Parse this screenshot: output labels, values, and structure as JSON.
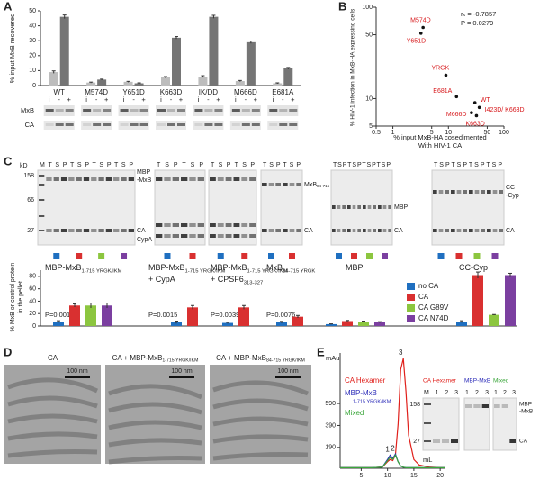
{
  "panel_labels": [
    "A",
    "B",
    "C",
    "D",
    "E"
  ],
  "chart_data": [
    {
      "type": "bar",
      "ylabel": "% input MxB recovered",
      "categories": [
        "WT",
        "M574D",
        "Y651D",
        "K663D",
        "IK/DD",
        "M666D",
        "E681A"
      ],
      "series": [
        {
          "color": "#bdbdbd",
          "values": [
            9,
            2,
            2.5,
            5.5,
            6,
            3,
            1.5
          ],
          "errors": [
            0.8,
            0.3,
            0.3,
            0.5,
            0.6,
            0.4,
            0.3
          ]
        },
        {
          "color": "#757575",
          "values": [
            46,
            4,
            1.5,
            32,
            46,
            29,
            11.5
          ],
          "errors": [
            1.2,
            0.3,
            0.3,
            0.8,
            1.0,
            0.8,
            0.6
          ]
        }
      ],
      "ylim": [
        0,
        50
      ],
      "yticks": [
        0,
        10,
        20,
        30,
        40,
        50
      ]
    },
    {
      "type": "scatter",
      "xlabel": [
        "% input MxB-HA cosedimented",
        "With HIV-1 CA"
      ],
      "ylabel": "% HIV-1 infection in MxB-HA expressing cells",
      "log_x": true,
      "log_y": true,
      "x": [
        3.5,
        3.2,
        9,
        14,
        30,
        36,
        26,
        32
      ],
      "y": [
        60,
        52,
        18,
        10.5,
        9,
        8,
        7,
        6.5
      ],
      "labels": [
        "M574D",
        "Y651D",
        "YRGK",
        "E681A",
        "WT",
        "I423D/ K663D",
        "M666D",
        "K663D"
      ],
      "label_color": "#d7191c",
      "marker_color": "#111111",
      "xlim": [
        0.5,
        100
      ],
      "xticks": [
        0.5,
        1,
        5,
        10,
        50,
        100
      ],
      "ylim": [
        5,
        100
      ],
      "yticks": [
        5,
        10,
        50,
        100
      ],
      "stats": [
        "rₛ = -0.7857",
        "P = 0.0279"
      ]
    },
    {
      "type": "bar",
      "ylabel": [
        "% MxB or control protein",
        "in the pellet"
      ],
      "categories": [
        {
          "lines": [
            {
              "text": "MBP-MxB",
              "sub": "1-715 YRGK/IKM"
            }
          ]
        },
        {
          "lines": [
            {
              "text": "MBP-MxB",
              "sub": "1-715 YRGK/IKM"
            },
            {
              "text": "+ CypA"
            }
          ]
        },
        {
          "lines": [
            {
              "text": "MBP-MxB",
              "sub": "1-715 YRGK/IKM"
            },
            {
              "text": "+ CPSF6",
              "sub": "313-327"
            }
          ]
        },
        {
          "lines": [
            {
              "text": "MxB",
              "sub": "84-715 YRGK"
            }
          ]
        },
        {
          "lines": [
            {
              "text": "MBP"
            }
          ]
        },
        {
          "lines": [
            {
              "text": "CC-Cyp"
            }
          ]
        }
      ],
      "series": [
        {
          "name": "no CA",
          "color": "#1f6fc0",
          "values": [
            7,
            6,
            5,
            6,
            3,
            7
          ],
          "errors": [
            1.5,
            2,
            1,
            1.5,
            0.5,
            1.5
          ]
        },
        {
          "name": "CA",
          "color": "#d93030",
          "values": [
            33,
            30,
            30,
            15,
            8,
            82
          ],
          "errors": [
            2.5,
            3,
            3,
            2,
            1,
            5
          ]
        },
        {
          "name": "CA G89V",
          "color": "#8cc63f",
          "values": [
            33,
            null,
            null,
            null,
            7,
            18
          ],
          "errors": [
            4,
            null,
            null,
            null,
            1,
            0.5
          ]
        },
        {
          "name": "CA N74D",
          "color": "#7b3fa0",
          "values": [
            33,
            null,
            null,
            null,
            6,
            82
          ],
          "errors": [
            4,
            null,
            null,
            null,
            1,
            3
          ]
        }
      ],
      "annotations": [
        "P=0.0015",
        "P=0.0015",
        "P=0.0039",
        "P=0.0076",
        null,
        null
      ],
      "ylim": [
        0,
        90
      ],
      "yticks": [
        0,
        20,
        40,
        60,
        80
      ]
    },
    {
      "type": "line",
      "ylabel": "mAu",
      "xlabel": "mL",
      "x": [
        1,
        3,
        5,
        7,
        9,
        10,
        10.5,
        11,
        11.5,
        12,
        12.5,
        13,
        13.5,
        14,
        15,
        16,
        18,
        20,
        21
      ],
      "series": [
        {
          "name": "CA Hexamer",
          "color": "#e0201b",
          "values": [
            5,
            5,
            5,
            5,
            10,
            60,
            80,
            70,
            120,
            400,
            900,
            1000,
            700,
            300,
            80,
            30,
            10,
            5,
            5
          ]
        },
        {
          "name": "MBP-MxB",
          "name_sub": "1-715 YRGK/IKM",
          "color": "#2b2bb8",
          "values": [
            5,
            5,
            5,
            5,
            10,
            80,
            120,
            90,
            130,
            60,
            20,
            10,
            5,
            5,
            5,
            5,
            5,
            5,
            5
          ]
        },
        {
          "name": "Mixed",
          "color": "#3aa63a",
          "values": [
            5,
            5,
            5,
            5,
            10,
            70,
            100,
            80,
            120,
            60,
            20,
            10,
            5,
            5,
            5,
            5,
            5,
            5,
            5
          ]
        }
      ],
      "peaks": [
        {
          "text": "1",
          "x": 10.5
        },
        {
          "text": "2",
          "x": 11.5
        },
        {
          "text": "3",
          "x": 13
        }
      ],
      "xlim": [
        1,
        21
      ],
      "xticks": [
        5,
        10,
        15,
        20
      ],
      "ylim": [
        0,
        1050
      ],
      "yticks": [
        190,
        390,
        590
      ]
    }
  ],
  "blots_A": {
    "lane_labels": [
      "i",
      "-",
      "+"
    ],
    "rows": [
      "MxB",
      "CA"
    ]
  },
  "gels_C": {
    "unit": "kD",
    "markers": [
      "158",
      "66",
      "27"
    ],
    "lanes": [
      "M T S P T S P T S P T S P",
      "T S P T S P",
      "T S P T S P",
      "T S P T S P",
      "T S P T S P T S P T S P",
      "T S P T S P T S P T S P"
    ],
    "band_labels": [
      {
        "text": "MBP"
      },
      {
        "text": "-MxB"
      },
      {
        "text": "CA"
      },
      {
        "text": "CypA"
      },
      {
        "text": "MxB",
        "sub": "84-715"
      },
      {
        "text": "CA"
      },
      {
        "text": "MBP"
      },
      {
        "text": "CA"
      },
      {
        "text": "CC"
      },
      {
        "text": "-Cyp"
      },
      {
        "text": "CA"
      }
    ]
  },
  "micrographs_D": {
    "titles": [
      {
        "text": "CA"
      },
      {
        "text": "CA + MBP-MxB",
        "sub": "1-715 YRGK/IKM"
      },
      {
        "text": "CA + MBP-MxB",
        "sub": "84-715 YRGK/IKM"
      }
    ],
    "scale": "100 nm"
  },
  "gels_E": {
    "lanes": [
      "M 1 2 3",
      "1 2 3",
      "1 2 3"
    ],
    "markers": [
      "158",
      "27"
    ],
    "band_labels": [
      "MBP",
      "-MxB",
      "CA"
    ]
  }
}
